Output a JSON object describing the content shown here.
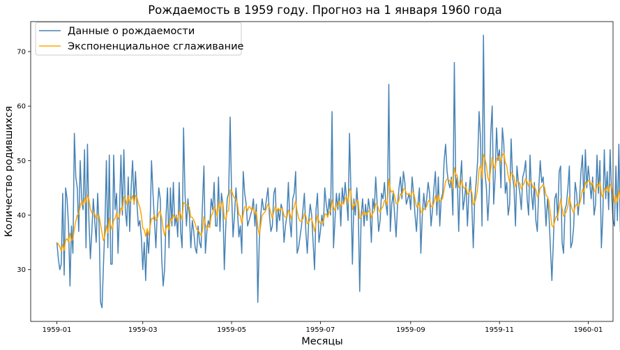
{
  "chart_data": {
    "type": "line",
    "title": "Рождаемость в 1959 году. Прогноз на 1 января 1960 года",
    "xlabel": "Месяцы",
    "ylabel": "Количество родившихся",
    "x_ticks": [
      "1959-01",
      "1959-03",
      "1959-05",
      "1959-07",
      "1959-09",
      "1959-11",
      "1960-01"
    ],
    "y_ticks": [
      30,
      40,
      50,
      60,
      70
    ],
    "xlim": [
      "1958-12-14",
      "1960-01-18"
    ],
    "ylim": [
      20.5,
      75.5
    ],
    "grid": false,
    "legend_position": "top-left",
    "x_start": "1959-01-01",
    "x_step": "1 day",
    "series": [
      {
        "name": "Данные о рождаемости",
        "color": "#4682b4",
        "values": [
          35,
          32,
          30,
          31,
          44,
          29,
          45,
          43,
          38,
          27,
          38,
          33,
          55,
          47,
          45,
          37,
          50,
          43,
          41,
          52,
          34,
          53,
          39,
          32,
          37,
          43,
          39,
          35,
          44,
          38,
          24,
          23,
          31,
          38,
          50,
          34,
          51,
          31,
          31,
          51,
          41,
          44,
          33,
          41,
          51,
          40,
          52,
          41,
          38,
          47,
          37,
          45,
          50,
          42,
          48,
          42,
          38,
          39,
          36,
          30,
          35,
          28,
          37,
          33,
          38,
          50,
          44,
          39,
          34,
          41,
          45,
          43,
          32,
          27,
          30,
          40,
          45,
          34,
          45,
          38,
          46,
          38,
          40,
          36,
          46,
          37,
          34,
          56,
          44,
          38,
          43,
          40,
          34,
          39,
          37,
          34,
          33,
          38,
          35,
          34,
          42,
          49,
          33,
          37,
          39,
          38,
          43,
          41,
          46,
          38,
          38,
          47,
          37,
          44,
          42,
          30,
          38,
          43,
          44,
          58,
          44,
          36,
          40,
          45,
          41,
          36,
          38,
          33,
          48,
          44,
          42,
          38,
          39,
          40,
          41,
          43,
          38,
          42,
          24,
          35,
          40,
          43,
          41,
          41,
          43,
          45,
          40,
          37,
          38,
          44,
          45,
          37,
          41,
          39,
          42,
          41,
          35,
          38,
          40,
          46,
          39,
          36,
          43,
          44,
          48,
          33,
          34,
          36,
          38,
          41,
          44,
          37,
          33,
          39,
          42,
          40,
          35,
          30,
          41,
          44,
          35,
          37,
          40,
          38,
          45,
          42,
          40,
          43,
          40,
          59,
          34,
          39,
          44,
          41,
          44,
          38,
          45,
          42,
          46,
          43,
          39,
          55,
          44,
          31,
          43,
          40,
          45,
          41,
          26,
          40,
          43,
          38,
          42,
          39,
          43,
          41,
          35,
          43,
          41,
          47,
          42,
          37,
          39,
          44,
          43,
          46,
          42,
          40,
          64,
          37,
          42,
          44,
          40,
          36,
          42,
          45,
          47,
          43,
          48,
          46,
          42,
          43,
          44,
          41,
          47,
          44,
          40,
          37,
          42,
          45,
          33,
          40,
          44,
          41,
          43,
          46,
          44,
          38,
          41,
          45,
          48,
          40,
          47,
          38,
          43,
          44,
          50,
          53,
          48,
          46,
          45,
          47,
          40,
          68,
          45,
          47,
          37,
          46,
          50,
          41,
          43,
          46,
          38,
          44,
          47,
          42,
          34,
          43,
          46,
          50,
          59,
          54,
          38,
          73,
          48,
          45,
          39,
          44,
          55,
          60,
          42,
          47,
          56,
          50,
          52,
          45,
          56,
          53,
          44,
          46,
          40,
          42,
          54,
          47,
          45,
          38,
          49,
          46,
          44,
          41,
          47,
          48,
          50,
          43,
          40,
          51,
          44,
          41,
          46,
          39,
          37,
          45,
          50,
          46,
          47,
          43,
          38,
          43,
          40,
          34,
          28,
          35,
          43,
          44,
          39,
          48,
          49,
          35,
          33,
          41,
          42,
          45,
          49,
          34,
          35,
          38,
          46,
          44,
          40,
          43,
          48,
          51,
          42,
          52,
          45,
          49,
          46,
          43,
          47,
          40,
          42,
          51,
          44,
          50,
          34,
          40,
          52,
          43,
          48,
          41,
          52,
          44,
          39,
          38,
          49,
          39,
          53,
          37,
          46,
          35,
          40,
          49,
          55,
          50
        ]
      },
      {
        "name": "Экспоненциальное сглаживание",
        "color": "#ffa500",
        "values": [
          35,
          34.7,
          34.2,
          33.4,
          34.6,
          33.5,
          35.4,
          35.7,
          35,
          36.7,
          35.3,
          35.6,
          37.5,
          38.9,
          40,
          40.2,
          41.6,
          42.5,
          41.9,
          43.1,
          42.2,
          43.7,
          42.9,
          41.1,
          40.4,
          40.6,
          40.2,
          39.4,
          40,
          39.9,
          38.3,
          36.7,
          35.3,
          36.2,
          38.1,
          36.7,
          39.4,
          38.1,
          37.3,
          39.1,
          39.4,
          40.4,
          39.3,
          39.8,
          41.3,
          41,
          43.3,
          43,
          42,
          43.6,
          42.3,
          42.8,
          43.6,
          42.2,
          43.6,
          43.3,
          42.1,
          41.4,
          40,
          37.6,
          37.3,
          36.1,
          37.5,
          36.3,
          37.8,
          39.4,
          39.3,
          40.1,
          39,
          39.4,
          40.4,
          40.8,
          39.5,
          37.5,
          36.2,
          37.6,
          38.2,
          37.3,
          39.4,
          39,
          40,
          39.6,
          39.8,
          38.9,
          40.8,
          40.2,
          39.1,
          42.3,
          42.1,
          41.9,
          41.8,
          41.4,
          39.6,
          39.6,
          39.1,
          38.4,
          37.4,
          37.2,
          36.8,
          36.2,
          37.1,
          39.7,
          38.4,
          37.5,
          38,
          37.7,
          39.9,
          40.3,
          41.5,
          41.1,
          39.7,
          42.4,
          41,
          42.2,
          42.4,
          39.5,
          39.1,
          40.7,
          40.8,
          44.6,
          44.5,
          43.7,
          43.1,
          43,
          42.1,
          40.1,
          39.9,
          38.5,
          40.1,
          41.5,
          41.6,
          40.8,
          41.6,
          41.3,
          40.8,
          41.4,
          40.2,
          40.6,
          37.9,
          36.4,
          38.1,
          40,
          40.3,
          40.6,
          41.3,
          42,
          41.4,
          40.3,
          39.4,
          40.6,
          41.6,
          40.7,
          41.3,
          40.8,
          41.3,
          41.1,
          39.9,
          39.6,
          39.5,
          40.9,
          40.4,
          39.3,
          40.9,
          41.5,
          42.6,
          40.8,
          39.5,
          38.9,
          38.9,
          39.3,
          40.3,
          39.9,
          38.4,
          38.6,
          39.3,
          39.4,
          38.2,
          37,
          38.6,
          40,
          38.9,
          38.5,
          38.9,
          38.6,
          40.2,
          40.2,
          39.6,
          40.6,
          40.6,
          42.8,
          41.5,
          40.8,
          41.8,
          41.6,
          42.6,
          41.6,
          42.3,
          42,
          43.1,
          43.4,
          42.2,
          44.8,
          44.4,
          41,
          42,
          41.7,
          42.8,
          42.5,
          39.4,
          39.6,
          40.6,
          40,
          40.5,
          40.1,
          40.7,
          40.8,
          39.5,
          40.4,
          40.7,
          42.1,
          42,
          41.1,
          40.5,
          41.2,
          41.6,
          42.7,
          42.6,
          41.9,
          46.6,
          44.7,
          44.2,
          44.5,
          43.4,
          42.1,
          42.1,
          42.8,
          43.9,
          43.7,
          44.7,
          44.9,
          44,
          43.8,
          43.9,
          43.4,
          44.3,
          44.2,
          42.9,
          41.5,
          41.6,
          42.3,
          40.6,
          40.4,
          41.2,
          41.2,
          41.6,
          42.5,
          42.8,
          41.6,
          41.5,
          42.3,
          43.5,
          42.4,
          43.7,
          42.5,
          42.7,
          43.1,
          44.7,
          46.2,
          46.6,
          46.5,
          46.2,
          46.5,
          44.9,
          48.7,
          47.5,
          47.3,
          45.1,
          45.3,
          46.5,
          45.2,
          44.9,
          45.2,
          43.9,
          44,
          44.8,
          44.2,
          41.9,
          42.3,
          43.3,
          44.8,
          48.4,
          49.2,
          46.7,
          51.1,
          50.4,
          49.1,
          46.9,
          46.1,
          48.5,
          50.6,
          49.1,
          48.4,
          50.4,
          50.6,
          50.9,
          49.7,
          50.9,
          51.4,
          49.7,
          49,
          47.2,
          46,
          47.8,
          47.6,
          47,
          45.2,
          46.2,
          46.2,
          45.8,
          44.8,
          45.4,
          45.9,
          46.7,
          46.1,
          45.3,
          46.4,
          45.9,
          45,
          45.3,
          44.6,
          43.4,
          43.6,
          45,
          45.2,
          45.6,
          45.1,
          43.6,
          43.4,
          42.5,
          40.3,
          38.1,
          37.8,
          38.9,
          39.8,
          39.6,
          41.3,
          42.9,
          41.3,
          39.8,
          40.2,
          40.7,
          41.7,
          43.4,
          42,
          41,
          40.4,
          41.6,
          42,
          41.6,
          42,
          43.1,
          44.7,
          44.3,
          46,
          45.7,
          46.4,
          46.3,
          45.6,
          45.9,
          44.7,
          44.1,
          45.6,
          45.3,
          46.2,
          43.9,
          43.2,
          44.9,
          44.5,
          45.2,
          44.2,
          45.6,
          45.3,
          43.7,
          42.2,
          43.7,
          42.4,
          44.5,
          43,
          43.6,
          41.7,
          41.3,
          42.9,
          45.2,
          46.7
        ]
      }
    ]
  }
}
